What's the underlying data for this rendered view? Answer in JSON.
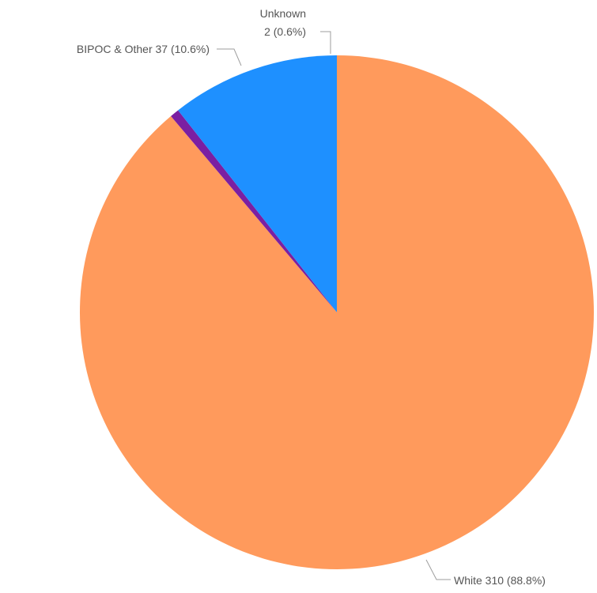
{
  "chart_data": {
    "type": "pie",
    "title": "",
    "slices": [
      {
        "label": "White",
        "value": 310,
        "percent": "88.8%",
        "color": "#ff9a5c",
        "display": "White 310 (88.8%)"
      },
      {
        "label": "Unknown",
        "value": 2,
        "percent": "0.6%",
        "color": "#7b1fa2",
        "display_line1": "Unknown",
        "display_line2": "2 (0.6%)"
      },
      {
        "label": "BIPOC & Other",
        "value": 37,
        "percent": "10.6%",
        "color": "#1e90ff",
        "display": "BIPOC & Other 37 (10.6%)"
      }
    ],
    "start_angle": "top",
    "direction": "clockwise"
  }
}
